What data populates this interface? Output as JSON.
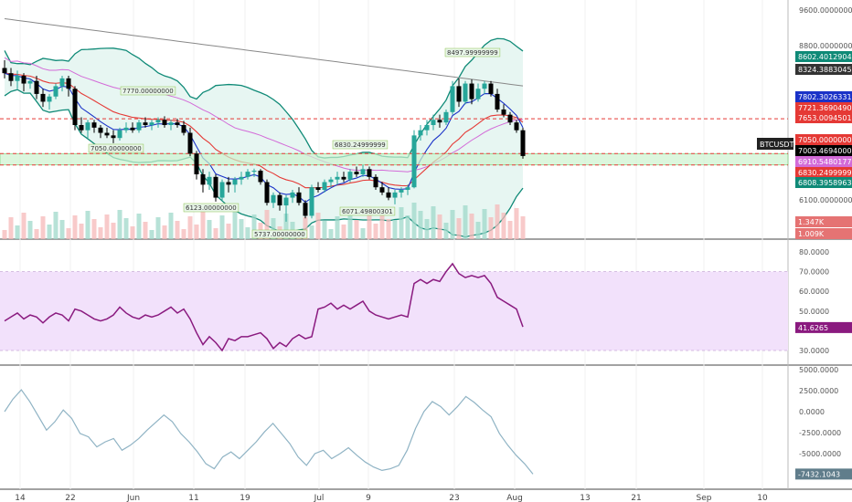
{
  "symbol": "BTCUSDT",
  "colors": {
    "up": "#26a69a",
    "down": "#000000",
    "bb_band": "#0f8a77",
    "bb_fill": "#e7f6f2",
    "ema_red": "#e53935",
    "ema_blue": "#1a32c8",
    "ma_pink": "#d36bd8",
    "ma_gray": "#888888",
    "rsi_line": "#8a1a7f",
    "rsi_fill": "#f2e1fb",
    "osc_line": "#8fb3c4",
    "level_red": "#e53935",
    "zone_green": "#cdf2cf"
  },
  "annotations": {
    "high_label": "8497.99999999",
    "label_7770": "7770.00000000",
    "label_7050": "7050.00000000",
    "label_6830": "6830.24999999",
    "label_6123": "6123.00000000",
    "label_6071": "6071.49800301",
    "label_5737": "5737.00000000"
  },
  "price_axis": {
    "ticks": [
      "9600.00000000",
      "8800.00000000",
      "6100.00000000"
    ],
    "tags": [
      {
        "text": "8602.40129040",
        "color": "#0f8a77"
      },
      {
        "text": "8324.38830458",
        "color": "#333333"
      },
      {
        "text": "7802.30263317",
        "color": "#1a32c8"
      },
      {
        "text": "7721.36904902",
        "color": "#e53935"
      },
      {
        "text": "7653.00945016",
        "color": "#e53935"
      },
      {
        "text": "7050.00000000",
        "color": "#e53935"
      },
      {
        "text": "7003.46940000",
        "color": "#000000"
      },
      {
        "text": "6910.54801779",
        "color": "#d36bd8"
      },
      {
        "text": "6830.24999999",
        "color": "#e53935"
      },
      {
        "text": "6808.39589634",
        "color": "#0f8a77"
      },
      {
        "text": "1.347K",
        "color": "#e57373"
      },
      {
        "text": "1.009K",
        "color": "#e57373"
      }
    ]
  },
  "rsi_axis": {
    "ticks": [
      "80.0000",
      "70.0000",
      "60.0000",
      "50.0000",
      "30.0000"
    ],
    "current": "41.6265"
  },
  "osc_axis": {
    "ticks": [
      "5000.0000",
      "2500.0000",
      "0.0000",
      "-2500.0000",
      "-5000.0000"
    ],
    "current": "-7432.1043"
  },
  "date_axis": [
    "14",
    "22",
    "Jun",
    "11",
    "19",
    "Jul",
    "9",
    "23",
    "Aug",
    "13",
    "21",
    "Sep",
    "10"
  ],
  "chart_data": [
    {
      "type": "line",
      "title": "BTCUSDT",
      "xlabel": "",
      "ylabel": "",
      "x_range": [
        "May 13",
        "Sep 10"
      ],
      "ylim": [
        5400,
        9800
      ],
      "levels": [
        7721,
        7050,
        6830
      ],
      "zone": [
        6830,
        7050
      ],
      "candles": [
        [
          8700,
          8850,
          8500,
          8600
        ],
        [
          8600,
          8700,
          8350,
          8450
        ],
        [
          8450,
          8650,
          8300,
          8550
        ],
        [
          8550,
          8600,
          8250,
          8400
        ],
        [
          8400,
          8500,
          8300,
          8450
        ],
        [
          8450,
          8550,
          8100,
          8200
        ],
        [
          8200,
          8300,
          7950,
          8050
        ],
        [
          8050,
          8200,
          7900,
          8150
        ],
        [
          8150,
          8400,
          8100,
          8350
        ],
        [
          8350,
          8550,
          8250,
          8500
        ],
        [
          8500,
          8550,
          8150,
          8300
        ],
        [
          8300,
          8350,
          7500,
          7600
        ],
        [
          7600,
          7750,
          7450,
          7500
        ],
        [
          7500,
          7700,
          7350,
          7650
        ],
        [
          7650,
          7700,
          7450,
          7550
        ],
        [
          7550,
          7600,
          7350,
          7450
        ],
        [
          7450,
          7550,
          7350,
          7400
        ],
        [
          7400,
          7500,
          7250,
          7350
        ],
        [
          7350,
          7550,
          7300,
          7500
        ],
        [
          7500,
          7650,
          7450,
          7550
        ],
        [
          7550,
          7650,
          7450,
          7500
        ],
        [
          7500,
          7700,
          7450,
          7650
        ],
        [
          7650,
          7750,
          7550,
          7600
        ],
        [
          7600,
          7700,
          7500,
          7650
        ],
        [
          7650,
          7750,
          7550,
          7700
        ],
        [
          7700,
          7770,
          7550,
          7600
        ],
        [
          7600,
          7700,
          7500,
          7650
        ],
        [
          7650,
          7720,
          7550,
          7600
        ],
        [
          7600,
          7680,
          7400,
          7450
        ],
        [
          7450,
          7550,
          7000,
          7050
        ],
        [
          7050,
          7100,
          6550,
          6650
        ],
        [
          6650,
          6750,
          6300,
          6450
        ],
        [
          6450,
          6700,
          6350,
          6600
        ],
        [
          6600,
          6650,
          6123,
          6200
        ],
        [
          6200,
          6550,
          6150,
          6500
        ],
        [
          6500,
          6600,
          6300,
          6450
        ],
        [
          6450,
          6600,
          6300,
          6550
        ],
        [
          6550,
          6700,
          6450,
          6600
        ],
        [
          6600,
          6750,
          6550,
          6700
        ],
        [
          6700,
          6760,
          6600,
          6720
        ],
        [
          6720,
          6750,
          6450,
          6500
        ],
        [
          6500,
          6550,
          6050,
          6100
        ],
        [
          6100,
          6300,
          6000,
          6250
        ],
        [
          6250,
          6300,
          5950,
          6050
        ],
        [
          6050,
          6250,
          5737,
          6200
        ],
        [
          6200,
          6350,
          6100,
          6300
        ],
        [
          6300,
          6400,
          6050,
          6100
        ],
        [
          6100,
          6150,
          5800,
          5850
        ],
        [
          5850,
          6450,
          5800,
          6400
        ],
        [
          6400,
          6500,
          6300,
          6350
        ],
        [
          6350,
          6550,
          6300,
          6500
        ],
        [
          6500,
          6600,
          6400,
          6550
        ],
        [
          6550,
          6700,
          6450,
          6600
        ],
        [
          6600,
          6700,
          6500,
          6550
        ],
        [
          6550,
          6750,
          6500,
          6700
        ],
        [
          6700,
          6800,
          6600,
          6650
        ],
        [
          6650,
          6830,
          6600,
          6750
        ],
        [
          6750,
          6800,
          6550,
          6600
        ],
        [
          6600,
          6650,
          6350,
          6400
        ],
        [
          6400,
          6500,
          6250,
          6300
        ],
        [
          6300,
          6400,
          6150,
          6200
        ],
        [
          6200,
          6350,
          6071,
          6300
        ],
        [
          6300,
          6400,
          6200,
          6350
        ],
        [
          6350,
          6450,
          6250,
          6400
        ],
        [
          6400,
          7500,
          6380,
          7400
        ],
        [
          7400,
          7600,
          7300,
          7500
        ],
        [
          7500,
          7700,
          7400,
          7600
        ],
        [
          7600,
          7800,
          7500,
          7700
        ],
        [
          7700,
          7800,
          7550,
          7650
        ],
        [
          7650,
          7900,
          7600,
          7850
        ],
        [
          7850,
          8450,
          7800,
          8350
        ],
        [
          8350,
          8498,
          7950,
          8050
        ],
        [
          8050,
          8450,
          8000,
          8400
        ],
        [
          8400,
          8480,
          8000,
          8100
        ],
        [
          8100,
          8400,
          8050,
          8300
        ],
        [
          8300,
          8450,
          8200,
          8400
        ],
        [
          8400,
          8450,
          8150,
          8200
        ],
        [
          8200,
          8300,
          7850,
          7900
        ],
        [
          7900,
          8000,
          7750,
          7800
        ],
        [
          7800,
          7850,
          7600,
          7650
        ],
        [
          7650,
          7700,
          7450,
          7500
        ],
        [
          7500,
          7550,
          6950,
          7003
        ]
      ]
    },
    {
      "type": "line",
      "title": "",
      "xlabel": "",
      "ylabel": "",
      "ylim": [
        25,
        85
      ],
      "band": [
        30,
        70
      ],
      "series": [
        {
          "values": [
            45,
            47,
            49,
            46,
            48,
            47,
            44,
            47,
            49,
            48,
            45,
            51,
            50,
            48,
            46,
            45,
            46,
            48,
            52,
            49,
            47,
            46,
            48,
            47,
            48,
            50,
            52,
            49,
            51,
            46,
            39,
            33,
            37,
            34,
            30,
            36,
            35,
            37,
            37,
            38,
            39,
            36,
            31,
            34,
            32,
            36,
            38,
            36,
            37,
            51,
            52,
            54,
            51,
            53,
            51,
            53,
            55,
            50,
            48,
            47,
            46,
            47,
            48,
            47,
            64,
            66,
            64,
            66,
            65,
            70,
            74,
            69,
            67,
            68,
            67,
            68,
            64,
            57,
            55,
            53,
            51,
            42
          ]
        }
      ]
    },
    {
      "type": "line",
      "title": "",
      "xlabel": "",
      "ylabel": "",
      "ylim": [
        -8500,
        5500
      ],
      "series": [
        {
          "values": [
            0,
            1500,
            2600,
            1200,
            -500,
            -2200,
            -1200,
            200,
            -800,
            -2600,
            -3000,
            -4200,
            -3600,
            -3200,
            -4600,
            -4000,
            -3200,
            -2200,
            -1300,
            -400,
            -1200,
            -2600,
            -3600,
            -4800,
            -6200,
            -6800,
            -5400,
            -4800,
            -5600,
            -4600,
            -3600,
            -2400,
            -1400,
            -2600,
            -3800,
            -5400,
            -6400,
            -5000,
            -4600,
            -5600,
            -5000,
            -4300,
            -5200,
            -6000,
            -6600,
            -7000,
            -6800,
            -6400,
            -4600,
            -2000,
            0,
            1200,
            600,
            -400,
            600,
            1800,
            1100,
            200,
            -600,
            -2600,
            -4000,
            -5200,
            -6200,
            -7432
          ]
        }
      ]
    }
  ]
}
